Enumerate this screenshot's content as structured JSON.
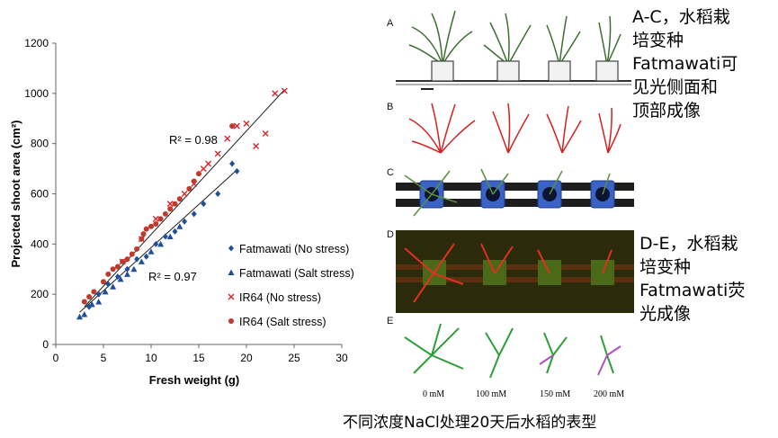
{
  "chart_data": {
    "type": "scatter",
    "title": "",
    "xlabel": "Fresh weight (g)",
    "ylabel": "Projected shoot area (cm²)",
    "xlim": [
      0,
      30
    ],
    "ylim": [
      0,
      1200
    ],
    "xticks": [
      0,
      5,
      10,
      15,
      20,
      25,
      30
    ],
    "yticks": [
      0,
      200,
      400,
      600,
      800,
      1000,
      1200
    ],
    "grid": false,
    "legend_position": "bottom-right",
    "series": [
      {
        "name": "Fatmawati (No stress)",
        "marker": "diamond",
        "color": "#1f4e9a",
        "x": [
          3.5,
          4.5,
          5.5,
          6.5,
          7.5,
          8.5,
          9.5,
          10.5,
          11.5,
          12.5,
          13.5,
          14.5,
          15.5,
          17,
          18.5,
          19
        ],
        "y": [
          150,
          200,
          240,
          270,
          300,
          340,
          350,
          400,
          430,
          450,
          490,
          520,
          560,
          600,
          720,
          690
        ]
      },
      {
        "name": "Fatmawati (Salt stress)",
        "marker": "triangle",
        "color": "#1f4e9a",
        "x": [
          2.5,
          3,
          3.8,
          4.5,
          5.2,
          6,
          6.8,
          7.5,
          8.2,
          9,
          10,
          11,
          12,
          13
        ],
        "y": [
          110,
          120,
          160,
          170,
          210,
          230,
          260,
          280,
          300,
          330,
          370,
          400,
          430,
          470
        ]
      },
      {
        "name": "IR64 (No stress)",
        "marker": "cross",
        "color": "#d9262c",
        "x": [
          7,
          9,
          10.5,
          12,
          13.5,
          14.5,
          15.5,
          16,
          17,
          18,
          19,
          20,
          21,
          22,
          23,
          24
        ],
        "y": [
          330,
          420,
          500,
          560,
          600,
          640,
          700,
          720,
          760,
          820,
          870,
          880,
          790,
          840,
          1000,
          1010
        ]
      },
      {
        "name": "IR64 (Salt stress)",
        "marker": "circle",
        "color": "#c0392b",
        "x": [
          3,
          3.5,
          4,
          5,
          5.5,
          6,
          6.5,
          7,
          7.5,
          8,
          8.5,
          9,
          9.2,
          9.5,
          10,
          10.5,
          11,
          11.5,
          12,
          12.5,
          13,
          14,
          14.5,
          15,
          18.5
        ],
        "y": [
          170,
          190,
          210,
          250,
          280,
          300,
          310,
          330,
          340,
          360,
          380,
          420,
          440,
          460,
          470,
          480,
          500,
          520,
          540,
          560,
          580,
          620,
          650,
          680,
          870
        ]
      }
    ],
    "fit_lines": [
      {
        "label": "R² = 0.98",
        "x": [
          3,
          24
        ],
        "y": [
          150,
          1015
        ]
      },
      {
        "label": "R² = 0.97",
        "x": [
          2.5,
          19
        ],
        "y": [
          128,
          695
        ]
      }
    ]
  },
  "notes": {
    "visible_side": [
      "A-C，水稻栽",
      "培变种",
      "Fatmawati可",
      "见光侧面和",
      "顶部成像"
    ],
    "fluorescence": [
      "D-E，水稻栽",
      "培变种",
      "Fatmawati荧",
      "光成像"
    ]
  },
  "panels": {
    "labels": [
      "A",
      "B",
      "C",
      "D",
      "E"
    ],
    "concentrations": [
      "0 mM",
      "100 mM",
      "150 mM",
      "200 mM"
    ]
  },
  "caption": "不同浓度NaCl处理20天后水稻的表型",
  "colors": {
    "visible_plant": "#4a7a3a",
    "red_plant": "#d62020",
    "blue_pot": "#2b55a8",
    "fluor_bg": "#3a3a10",
    "green_plant": "#2e9e3a",
    "purple_stress": "#b050c0"
  }
}
